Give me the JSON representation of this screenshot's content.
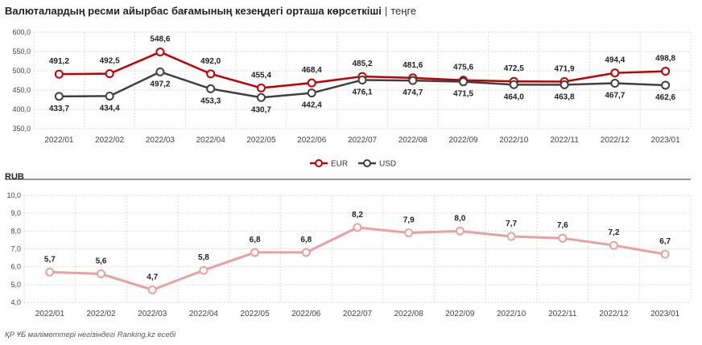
{
  "header": {
    "title": "Валюталардың ресми айырбас бағамының кезеңдегі орташа көрсеткіші",
    "separator": "|",
    "unit": "теңге"
  },
  "colors": {
    "eur": "#c00000",
    "usd": "#404040",
    "rub": "#e8a0a0",
    "grid": "#d9d9d9"
  },
  "chart_data": [
    {
      "type": "line",
      "categories": [
        "2022/01",
        "2022/02",
        "2022/03",
        "2022/04",
        "2022/05",
        "2022/06",
        "2022/07",
        "2022/08",
        "2022/09",
        "2022/10",
        "2022/11",
        "2022/12",
        "2023/01"
      ],
      "ylim": [
        350,
        600
      ],
      "yticks": [
        "350,0",
        "400,0",
        "450,0",
        "500,0",
        "550,0",
        "600,0"
      ],
      "legend_position": "bottom-center",
      "grid": true,
      "series": [
        {
          "name": "EUR",
          "values": [
            491.2,
            492.5,
            548.6,
            492.0,
            455.4,
            468.4,
            485.2,
            481.6,
            475.6,
            472.5,
            471.9,
            494.4,
            498.8
          ],
          "labels": [
            "491,2",
            "492,5",
            "548,6",
            "492,0",
            "455,4",
            "468,4",
            "485,2",
            "481,6",
            "475,6",
            "472,5",
            "471,9",
            "494,4",
            "498,8"
          ]
        },
        {
          "name": "USD",
          "values": [
            433.7,
            434.4,
            497.2,
            453.3,
            430.7,
            442.4,
            476.1,
            474.7,
            471.5,
            464.0,
            463.8,
            467.7,
            462.6
          ],
          "labels": [
            "433,7",
            "434,4",
            "497,2",
            "453,3",
            "430,7",
            "442,4",
            "476,1",
            "474,7",
            "471,5",
            "464,0",
            "463,8",
            "467,7",
            "462,6"
          ]
        }
      ]
    },
    {
      "type": "line",
      "title": "RUB",
      "categories": [
        "2022/01",
        "2022/02",
        "2022/03",
        "2022/04",
        "2022/05",
        "2022/06",
        "2022/07",
        "2022/08",
        "2022/09",
        "2022/10",
        "2022/11",
        "2022/12",
        "2023/01"
      ],
      "ylim": [
        4,
        10
      ],
      "yticks": [
        "4,0",
        "5,0",
        "6,0",
        "7,0",
        "8,0",
        "9,0",
        "10,0"
      ],
      "grid": true,
      "series": [
        {
          "name": "RUB",
          "values": [
            5.7,
            5.6,
            4.7,
            5.8,
            6.8,
            6.8,
            8.2,
            7.9,
            8.0,
            7.7,
            7.6,
            7.2,
            6.7
          ],
          "labels": [
            "5,7",
            "5,6",
            "4,7",
            "5,8",
            "6,8",
            "6,8",
            "8,2",
            "7,9",
            "8,0",
            "7,7",
            "7,6",
            "7,2",
            "6,7"
          ]
        }
      ]
    }
  ],
  "footer": {
    "source": "ҚР ҰБ мәліметтері негізіндегі Ranking.kz есебі"
  }
}
